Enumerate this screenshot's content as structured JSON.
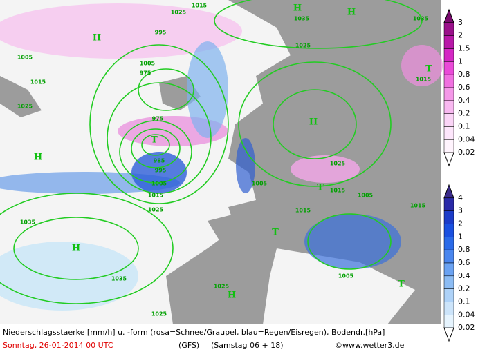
{
  "legend_snow": {
    "labels": [
      "3",
      "2",
      "1.5",
      "1",
      "0.8",
      "0.6",
      "0.4",
      "0.2",
      "0.1",
      "0.04",
      "0.02"
    ]
  },
  "legend_rain": {
    "labels": [
      "4",
      "3",
      "2",
      "1",
      "0.8",
      "0.6",
      "0.4",
      "0.2",
      "0.1",
      "0.04",
      "0.02"
    ]
  },
  "map": {
    "pressure_centers": [
      "H",
      "H",
      "H",
      "H",
      "H",
      "H",
      "H",
      "T",
      "T",
      "T",
      "T",
      "T"
    ],
    "isobar_labels": [
      "1025",
      "1015",
      "1035",
      "1035",
      "995",
      "1025",
      "1005",
      "1005",
      "975",
      "1015",
      "1025",
      "975",
      "1025",
      "985",
      "995",
      "1005",
      "1015",
      "1025",
      "1035",
      "1015",
      "1005",
      "1015",
      "1015",
      "1015",
      "1005",
      "1035",
      "1005",
      "1025",
      "1025"
    ]
  },
  "footer": {
    "description": "Niederschlagsstaerke [mm/h] u. -form (rosa=Schnee/Graupel, blau=Regen/Eisregen), Bodendr.[hPa]",
    "date": "Sonntag, 26-01-2014  00 UTC",
    "model": "(GFS)",
    "run": "(Samstag 06 + 18)",
    "credit": "©www.wetter3.de"
  }
}
